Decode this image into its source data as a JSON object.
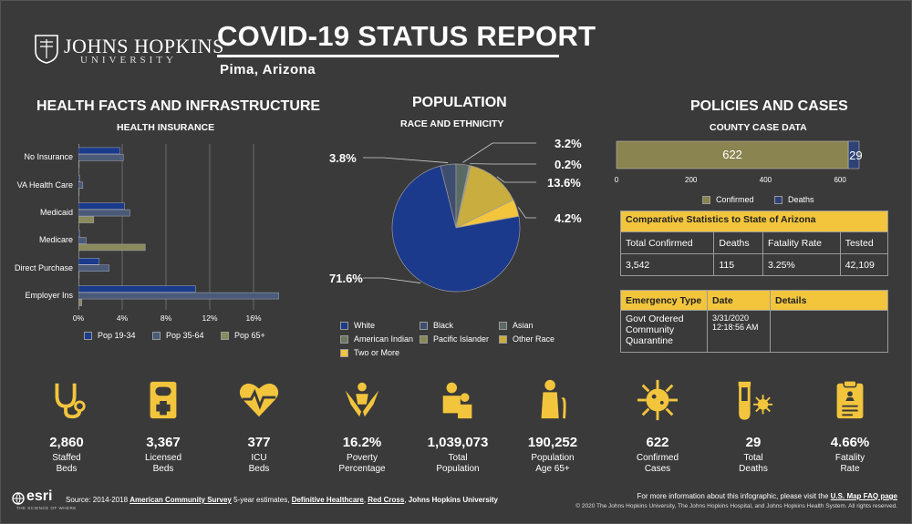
{
  "header": {
    "logo_main": "JOHNS HOPKINS",
    "logo_sub": "UNIVERSITY",
    "title": "COVID-19 STATUS REPORT",
    "location": "Pima,  Arizona"
  },
  "left": {
    "section_title": "HEALTH FACTS AND INFRASTRUCTURE",
    "subtitle": "HEALTH INSURANCE"
  },
  "middle": {
    "section_title": "POPULATION",
    "subtitle": "RACE AND ETHNICITY"
  },
  "right": {
    "section_title": "POLICIES AND CASES",
    "subtitle": "COUNTY CASE DATA"
  },
  "colors": {
    "pop1934": "#1a3a8c",
    "pop3564": "#4a5a78",
    "pop65": "#8a8a5a",
    "accent": "#f2c53d",
    "confirmed": "#8a8450",
    "deaths": "#2d4275"
  },
  "chart_data": [
    {
      "type": "bar",
      "orientation": "horizontal",
      "title": "HEALTH INSURANCE",
      "categories": [
        "No Insurance",
        "VA Health Care",
        "Medicaid",
        "Medicare",
        "Direct Purchase",
        "Employer Ins"
      ],
      "series": [
        {
          "name": "Pop 19-34",
          "values": [
            3.8,
            0.1,
            4.2,
            0.1,
            1.9,
            10.7
          ]
        },
        {
          "name": "Pop 35-64",
          "values": [
            4.1,
            0.4,
            4.7,
            0.7,
            2.8,
            18.3
          ]
        },
        {
          "name": "Pop 65+",
          "values": [
            0.0,
            0.0,
            1.4,
            6.1,
            0.0,
            0.3
          ]
        }
      ],
      "xlim": [
        0,
        20
      ],
      "ticks": [
        "0%",
        "4%",
        "8%",
        "12%",
        "16%"
      ],
      "tick_values": [
        0,
        4,
        8,
        12,
        16
      ],
      "grid": true,
      "legend_placement": "bottom"
    },
    {
      "type": "pie",
      "title": "RACE AND ETHNICITY",
      "slices": [
        {
          "name": "White",
          "value": 71.6,
          "label": "71.6%",
          "color": "#1c3a8c"
        },
        {
          "name": "Black",
          "value": 3.8,
          "label": "3.8%",
          "color": "#3f4e6e"
        },
        {
          "name": "Asian",
          "value": 3.2,
          "label": "3.2%",
          "color": "#5a6a64"
        },
        {
          "name": "American Indian",
          "value": 0.2,
          "label": "0.2%",
          "color": "#6f7660"
        },
        {
          "name": "Pacific Islander",
          "value": 0.2,
          "label": "",
          "color": "#8a8a56"
        },
        {
          "name": "Other Race",
          "value": 13.6,
          "label": "13.6%",
          "color": "#c9ad3e"
        },
        {
          "name": "Two or More",
          "value": 4.2,
          "label": "4.2%",
          "color": "#f2c53d"
        }
      ],
      "legend": [
        "White",
        "Black",
        "Asian",
        "American Indian",
        "Pacific Islander",
        "Other Race",
        "Two or More"
      ],
      "legend_placement": "bottom"
    },
    {
      "type": "bar",
      "orientation": "horizontal",
      "stacked": true,
      "title": "COUNTY CASE DATA",
      "series": [
        {
          "name": "Confirmed",
          "values": [
            622
          ],
          "label": "622"
        },
        {
          "name": "Deaths",
          "values": [
            29
          ],
          "label": "29"
        }
      ],
      "xlim": [
        0,
        651
      ],
      "ticks": [
        "0",
        "200",
        "400",
        "600"
      ],
      "tick_values": [
        0,
        200,
        400,
        600
      ],
      "legend_placement": "bottom"
    }
  ],
  "comparative": {
    "title": "Comparative Statistics to State of Arizona",
    "headers": [
      "Total Confirmed",
      "Deaths",
      "Fatality Rate",
      "Tested"
    ],
    "values": [
      "3,542",
      "115",
      "3.25%",
      "42,109"
    ]
  },
  "emergency": {
    "headers": [
      "Emergency Type",
      "Date",
      "Details"
    ],
    "type": "Govt Ordered Community Quarantine",
    "date": "3/31/2020 12:18:56 AM",
    "details": ""
  },
  "stats": [
    {
      "icon": "stethoscope-icon",
      "value": "2,860",
      "label": "Staffed Beds"
    },
    {
      "icon": "medical-chart-icon",
      "value": "3,367",
      "label": "Licensed Beds"
    },
    {
      "icon": "heart-pulse-icon",
      "value": "377",
      "label": "ICU Beds"
    },
    {
      "icon": "caring-hands-icon",
      "value": "16.2%",
      "label": "Poverty Percentage"
    },
    {
      "icon": "people-icon",
      "value": "1,039,073",
      "label": "Total Population"
    },
    {
      "icon": "elder-icon",
      "value": "190,252",
      "label": "Population Age 65+"
    },
    {
      "icon": "virus-icon",
      "value": "622",
      "label": "Confirmed Cases"
    },
    {
      "icon": "test-tube-virus-icon",
      "value": "29",
      "label": "Total Deaths"
    },
    {
      "icon": "clipboard-icon",
      "value": "4.66%",
      "label": "Fatality Rate"
    }
  ],
  "footer": {
    "source_prefix": "Source: 2014-2018 ",
    "acs": "American Community Survey",
    "mid1": " 5-year estimates, ",
    "dh": "Definitive Healthcare",
    "mid2": ", ",
    "rc": "Red Cross",
    "mid3": ", ",
    "jhu": "Johns Hopkins University",
    "info_prefix": "For more information about this infographic, please visit the ",
    "faq": "U.S. Map FAQ page",
    "copyright": "© 2020 The Johns Hopkins University, The Johns Hopkins Hospital, and Johns Hopkins Health System. All rights reserved.",
    "esri": "esri",
    "esri_tag": "THE SCIENCE OF WHERE"
  }
}
